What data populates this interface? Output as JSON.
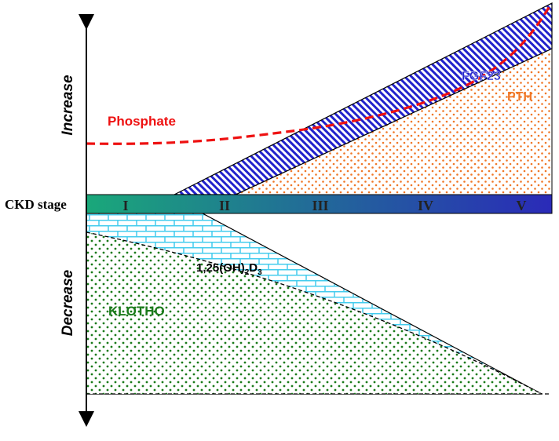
{
  "axis": {
    "increase_label": "Increase",
    "decrease_label": "Decrease",
    "ckd_label": "CKD stage"
  },
  "stages": [
    "I",
    "II",
    "III",
    "IV",
    "V"
  ],
  "labels": {
    "phosphate": "Phosphate",
    "fgf23": "FGF23",
    "pth": "PTH",
    "vitd_main": "1,25(OH)",
    "vitd_sub1": "2",
    "vitd_mid": "D",
    "vitd_sub2": "3",
    "klotho": "KLOTHO"
  },
  "colors": {
    "phosphate": "#ee1111",
    "fgf23": "#2222cc",
    "pth": "#f07828",
    "vitd": "#44ccee",
    "klotho": "#1a7a1a",
    "bar_start": "#1aa87a",
    "bar_end": "#2a2ab8"
  }
}
